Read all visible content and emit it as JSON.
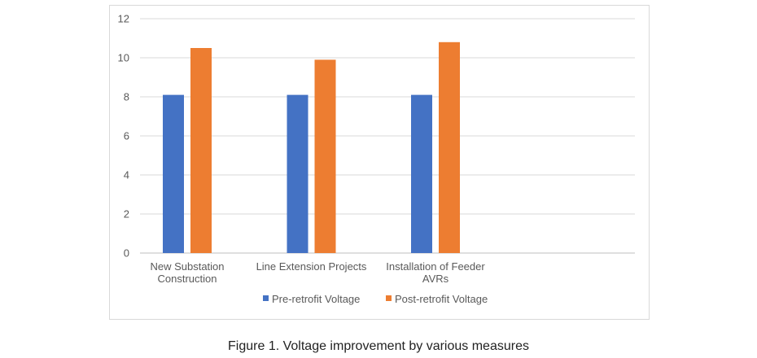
{
  "chart_data": {
    "type": "bar",
    "categories": [
      [
        "New Substation",
        "Construction"
      ],
      [
        "Line Extension Projects"
      ],
      [
        "Installation of Feeder",
        "AVRs"
      ]
    ],
    "series": [
      {
        "name": "Pre-retrofit Voltage",
        "color": "#4472c4",
        "values": [
          8.1,
          8.1,
          8.1
        ]
      },
      {
        "name": "Post-retrofit Voltage",
        "color": "#ed7d31",
        "values": [
          10.5,
          9.9,
          10.8
        ]
      }
    ],
    "ylim": [
      0,
      12
    ],
    "yticks": [
      "0",
      "2",
      "4",
      "6",
      "8",
      "10",
      "12"
    ],
    "grid": true,
    "legend": "bottom",
    "title": "",
    "xlabel": "",
    "ylabel": ""
  },
  "caption": "Figure 1. Voltage improvement by various measures"
}
